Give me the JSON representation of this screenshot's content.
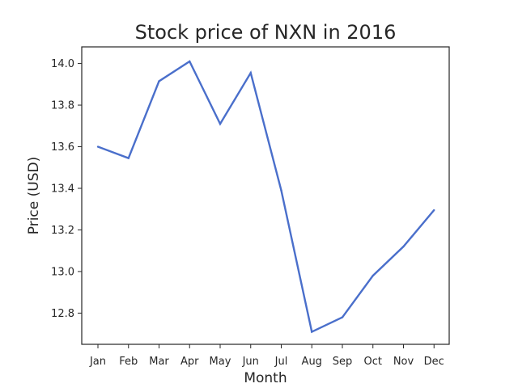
{
  "chart_data": {
    "type": "line",
    "title": "Stock price of NXN in 2016",
    "xlabel": "Month",
    "ylabel": "Price (USD)",
    "categories": [
      "Jan",
      "Feb",
      "Mar",
      "Apr",
      "May",
      "Jun",
      "Jul",
      "Aug",
      "Sep",
      "Oct",
      "Nov",
      "Dec"
    ],
    "series": [
      {
        "values": [
          13.6,
          13.545,
          13.915,
          14.01,
          13.71,
          13.955,
          13.39,
          12.71,
          12.78,
          12.98,
          13.12,
          13.295
        ],
        "color": "#4a6fcb"
      }
    ],
    "yticks": [
      "12.8",
      "13.0",
      "13.2",
      "13.4",
      "13.6",
      "13.8",
      "14.0"
    ],
    "ylim": [
      12.65,
      14.08
    ],
    "grid": false,
    "legend": "none"
  }
}
